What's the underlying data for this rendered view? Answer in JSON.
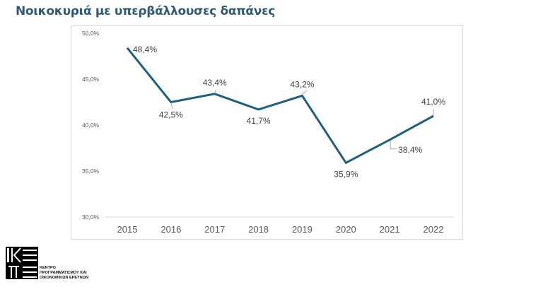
{
  "title": "Νοικοκυριά με υπερβάλλουσες δαπάνες",
  "colors": {
    "line": "#1f5f7f",
    "title": "#2f5b78",
    "axis_text": "#595959",
    "label_text": "#404040"
  },
  "logo": {
    "icon": "kepe-logo-icon",
    "lines": [
      "ΚΕΝΤΡΟ",
      "ΠΡΟΓΡΑΜΜΑΤΙΣΜΟΥ ΚΑΙ",
      "ΟΙΚΟΝΟΜΙΚΩΝ ΕΡΕΥΝΩΝ"
    ]
  },
  "chart_data": {
    "type": "line",
    "title": "Νοικοκυριά με υπερβάλλουσες δαπάνες",
    "xlabel": "",
    "ylabel": "",
    "categories": [
      "2015",
      "2016",
      "2017",
      "2018",
      "2019",
      "2020",
      "2021",
      "2022"
    ],
    "series": [
      {
        "name": "Νοικοκυριά με υπερβάλλουσες δαπάνες",
        "values": [
          48.4,
          42.5,
          43.4,
          41.7,
          43.2,
          35.9,
          38.4,
          41.0
        ]
      }
    ],
    "data_labels": [
      "48,4%",
      "42,5%",
      "43,4%",
      "41,7%",
      "43,2%",
      "35,9%",
      "38,4%",
      "41,0%"
    ],
    "ylim": [
      30,
      50
    ],
    "yticks": [
      30,
      35,
      40,
      45,
      50
    ],
    "ytick_labels": [
      "30,0%",
      "35,0%",
      "40,0%",
      "45,0%",
      "50,0%"
    ],
    "grid": false,
    "legend": "none"
  }
}
